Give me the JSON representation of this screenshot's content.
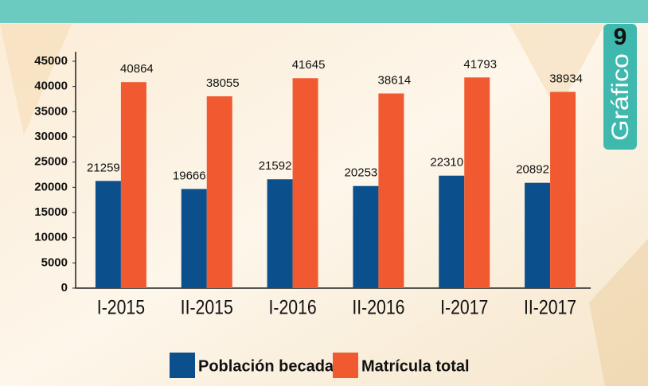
{
  "chart_data": {
    "type": "bar",
    "categories": [
      "I-2015",
      "II-2015",
      "I-2016",
      "II-2016",
      "I-2017",
      "II-2017"
    ],
    "series": [
      {
        "name": "Población becada",
        "color": "#0b4f8c",
        "values": [
          21259,
          19666,
          21592,
          20253,
          22310,
          20892
        ]
      },
      {
        "name": "Matrícula total",
        "color": "#f15a30",
        "values": [
          40864,
          38055,
          41645,
          38614,
          41793,
          38934
        ]
      }
    ],
    "ylim": [
      0,
      45000
    ],
    "yticks": [
      0,
      5000,
      10000,
      15000,
      20000,
      25000,
      30000,
      35000,
      40000,
      45000
    ],
    "grid": false,
    "legend": "bottom",
    "annotations": [
      "9",
      "Gráfico"
    ]
  }
}
